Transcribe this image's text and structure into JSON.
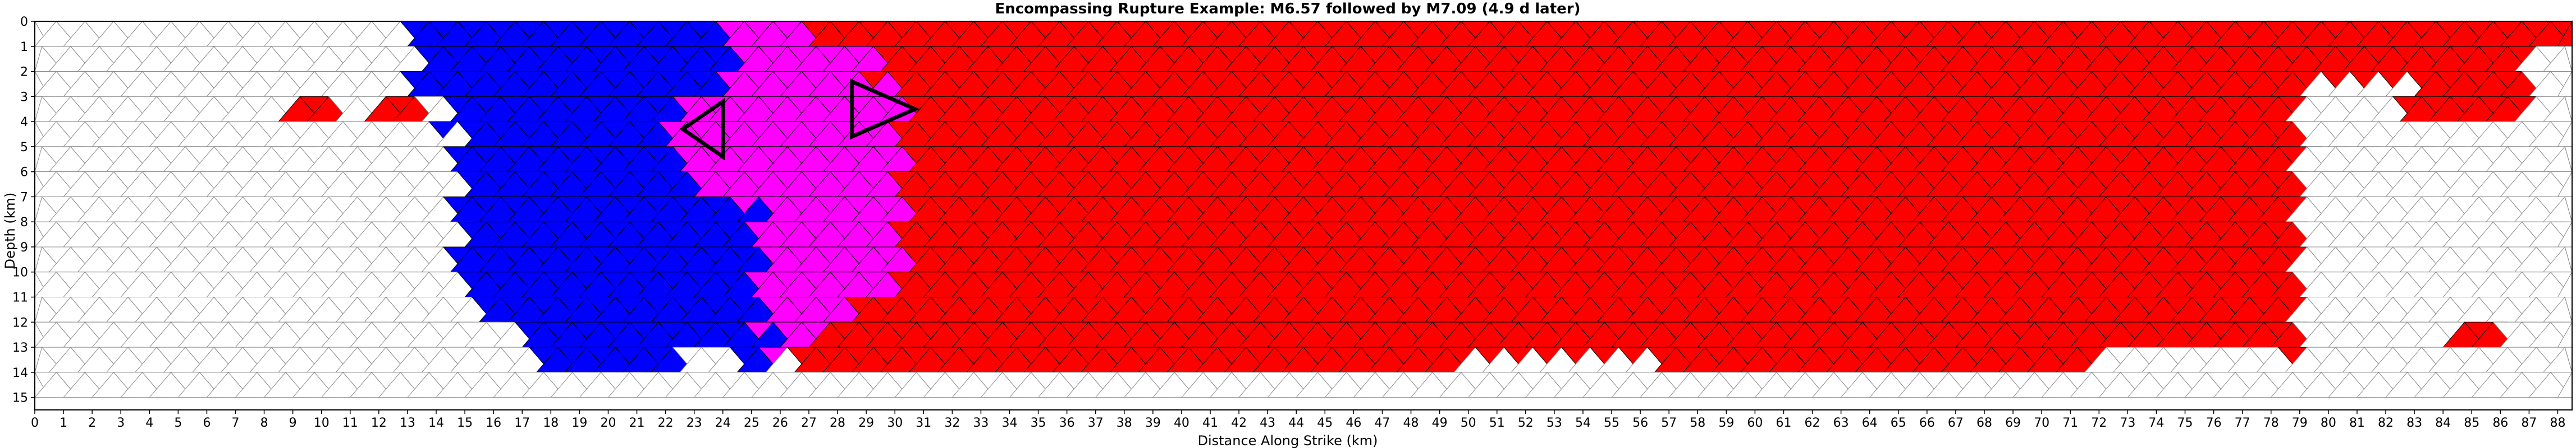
{
  "chart_data": {
    "type": "heatmap",
    "title": "Encompassing Rupture Example: M6.57 followed by M7.09 (4.9 d later)",
    "xlabel": "Distance Along Strike (km)",
    "ylabel": "Depth (km)",
    "xlim": [
      0,
      88.5
    ],
    "ylim": [
      15.5,
      0
    ],
    "x_ticks": [
      0,
      1,
      2,
      3,
      4,
      5,
      6,
      7,
      8,
      9,
      10,
      11,
      12,
      13,
      14,
      15,
      16,
      17,
      18,
      19,
      20,
      21,
      22,
      23,
      24,
      25,
      26,
      27,
      28,
      29,
      30,
      31,
      32,
      33,
      34,
      35,
      36,
      37,
      38,
      39,
      40,
      41,
      42,
      43,
      44,
      45,
      46,
      47,
      48,
      49,
      50,
      51,
      52,
      53,
      54,
      55,
      56,
      57,
      58,
      59,
      60,
      61,
      62,
      63,
      64,
      65,
      66,
      67,
      68,
      69,
      70,
      71,
      72,
      73,
      74,
      75,
      76,
      77,
      78,
      79,
      80,
      81,
      82,
      83,
      84,
      85,
      86,
      87,
      88
    ],
    "y_ticks": [
      0,
      1,
      2,
      3,
      4,
      5,
      6,
      7,
      8,
      9,
      10,
      11,
      12,
      13,
      14,
      15
    ],
    "grid": "triangular mesh",
    "colors": {
      "first_rupture_M6.57": "#0000ff",
      "overlap_both_ruptures": "#ff00ff",
      "second_rupture_M7.09": "#ff0000",
      "unruptured": "#ffffff",
      "mesh_edges": "#888888",
      "hypocenter_outline": "#000000"
    },
    "regions": [
      {
        "rupture": "first (M6.57)",
        "color": "blue",
        "along_strike_km": [
          13.5,
          25.5
        ],
        "depth_km": [
          0,
          14.3
        ]
      },
      {
        "rupture": "overlap (both)",
        "color": "magenta",
        "along_strike_km": [
          22.5,
          30.5
        ],
        "depth_km": [
          0,
          12.5
        ]
      },
      {
        "rupture": "second (M7.09)",
        "color": "red",
        "along_strike_km": [
          24.5,
          88.5
        ],
        "depth_km": [
          0,
          14.3
        ]
      },
      {
        "rupture": "second (M7.09) isolated",
        "color": "red",
        "along_strike_km": [
          9,
          10.5
        ],
        "depth_km": [
          2.9,
          4.1
        ]
      },
      {
        "rupture": "second (M7.09) isolated",
        "color": "red",
        "along_strike_km": [
          12,
          13.5
        ],
        "depth_km": [
          2.9,
          4.1
        ]
      },
      {
        "rupture": "second (M7.09) isolated",
        "color": "red",
        "along_strike_km": [
          84.5,
          86
        ],
        "depth_km": [
          11.9,
          13.2
        ]
      }
    ],
    "hypocenters": [
      {
        "event": "M6.57",
        "along_strike_km": 24,
        "depth_km": 4.3,
        "shape": "triangle"
      },
      {
        "event": "M7.09",
        "along_strike_km": 29,
        "depth_km": 3.5,
        "shape": "triangle"
      }
    ]
  }
}
